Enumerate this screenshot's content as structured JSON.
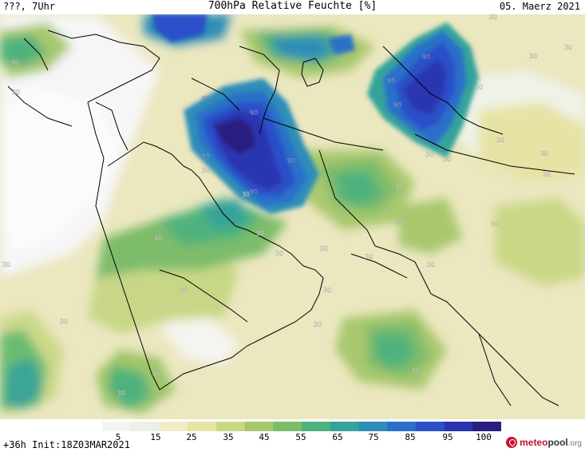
{
  "header": {
    "left": "???, 7Uhr",
    "title": "700hPa Relative Feuchte [%]",
    "date": "05. Maerz 2021"
  },
  "footer": {
    "run_info": "+36h Init:18Z03MAR2021",
    "logo_main": "meteo",
    "logo_second": "pool",
    "logo_suffix": ".org"
  },
  "colorbar": {
    "ticks": [
      "5",
      "15",
      "25",
      "35",
      "45",
      "55",
      "65",
      "75",
      "85",
      "95",
      "100"
    ],
    "colors": [
      "#f4f4f4",
      "#ecf0e6",
      "#f1edc9",
      "#e6e3a4",
      "#cad886",
      "#a9c86e",
      "#7dbc6a",
      "#4fb27d",
      "#36a39a",
      "#2f8db8",
      "#2a6fc9",
      "#2a50c8",
      "#2a34b0",
      "#2a1f80"
    ]
  },
  "map": {
    "contour_labels": [
      "30",
      "30",
      "30",
      "30",
      "30",
      "30",
      "30",
      "30",
      "30",
      "30",
      "30",
      "30",
      "30",
      "30",
      "30",
      "30",
      "30",
      "30",
      "30",
      "30",
      "30",
      "30",
      "30",
      "30",
      "30",
      "30",
      "30",
      "30",
      "30",
      "30",
      "30",
      "90",
      "90",
      "90",
      "90",
      "90",
      "90",
      "90",
      "90"
    ]
  }
}
